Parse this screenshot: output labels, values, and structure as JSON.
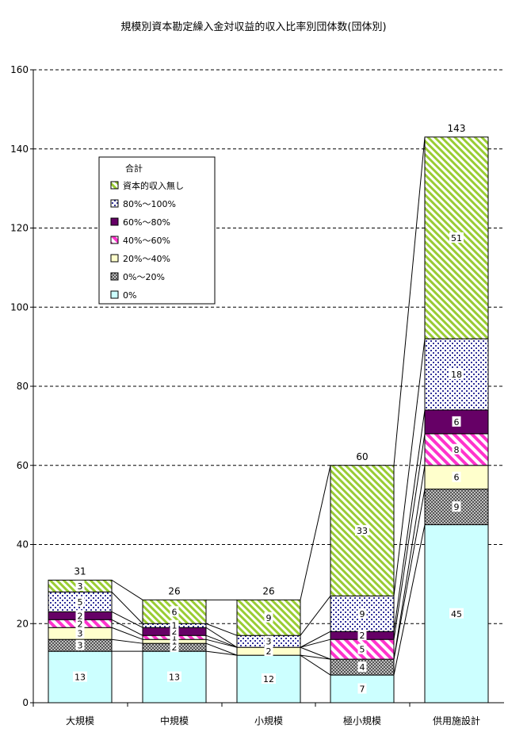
{
  "chart_data": {
    "type": "bar",
    "stacked": true,
    "title": "規模別資本勘定繰入金対収益的収入比率別団体数(団体別)",
    "categories": [
      "大規模",
      "中規模",
      "小規模",
      "極小規模",
      "供用施設計"
    ],
    "ylim": [
      0,
      160
    ],
    "yticks": [
      0,
      20,
      40,
      60,
      80,
      100,
      120,
      140,
      160
    ],
    "grid": true,
    "legend": {
      "title": "合計",
      "position": "top-left"
    },
    "series": [
      {
        "name": "0%",
        "values": [
          13,
          13,
          12,
          7,
          45
        ],
        "color": "#ccffff",
        "pattern": "solid"
      },
      {
        "name": "0%～20%",
        "values": [
          3,
          2,
          0,
          4,
          9
        ],
        "color": "#999999",
        "pattern": "dots"
      },
      {
        "name": "20%～40%",
        "values": [
          3,
          1,
          2,
          0,
          6
        ],
        "color": "#ffffcc",
        "pattern": "solid"
      },
      {
        "name": "40%～60%",
        "values": [
          2,
          1,
          0,
          5,
          8
        ],
        "color": "#ff33cc",
        "pattern": "diag"
      },
      {
        "name": "60%～80%",
        "values": [
          2,
          2,
          0,
          2,
          6
        ],
        "color": "#660066",
        "pattern": "solid"
      },
      {
        "name": "80%～100%",
        "values": [
          5,
          1,
          3,
          9,
          18
        ],
        "color": "#333399",
        "pattern": "dots"
      },
      {
        "name": "資本的収入無し",
        "values": [
          3,
          6,
          9,
          33,
          51
        ],
        "color": "#99cc33",
        "pattern": "diag"
      }
    ],
    "totals": [
      31,
      26,
      26,
      60,
      143
    ]
  }
}
